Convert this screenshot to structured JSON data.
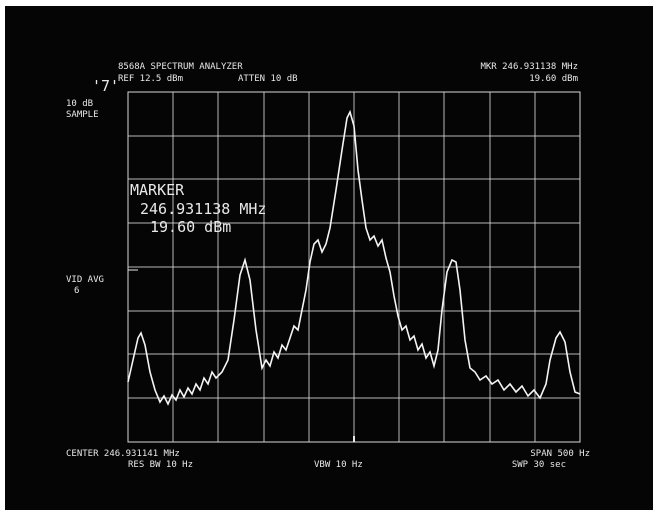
{
  "screen": {
    "header": {
      "model": "8568A SPECTRUM ANALYZER",
      "ref": "REF 12.5 dBm",
      "atten": "ATTEN 10 dB",
      "mkr_freq": "MKR 246.931138 MHz",
      "mkr_level": "19.60 dBm"
    },
    "left_panel": {
      "trace_id": "'7'",
      "scale": "10 dB",
      "detector": "SAMPLE",
      "vid_avg": "VID AVG",
      "vid_avg_count": "6"
    },
    "marker": {
      "label": "MARKER",
      "freq": "246.931138 MHz",
      "level": "19.60 dBm"
    },
    "footer": {
      "center": "CENTER 246.931141 MHz",
      "res_bw": "RES BW 10 Hz",
      "vbw": "VBW 10 Hz",
      "span": "SPAN 500 Hz",
      "sweep": "SWP 30 sec"
    }
  }
}
